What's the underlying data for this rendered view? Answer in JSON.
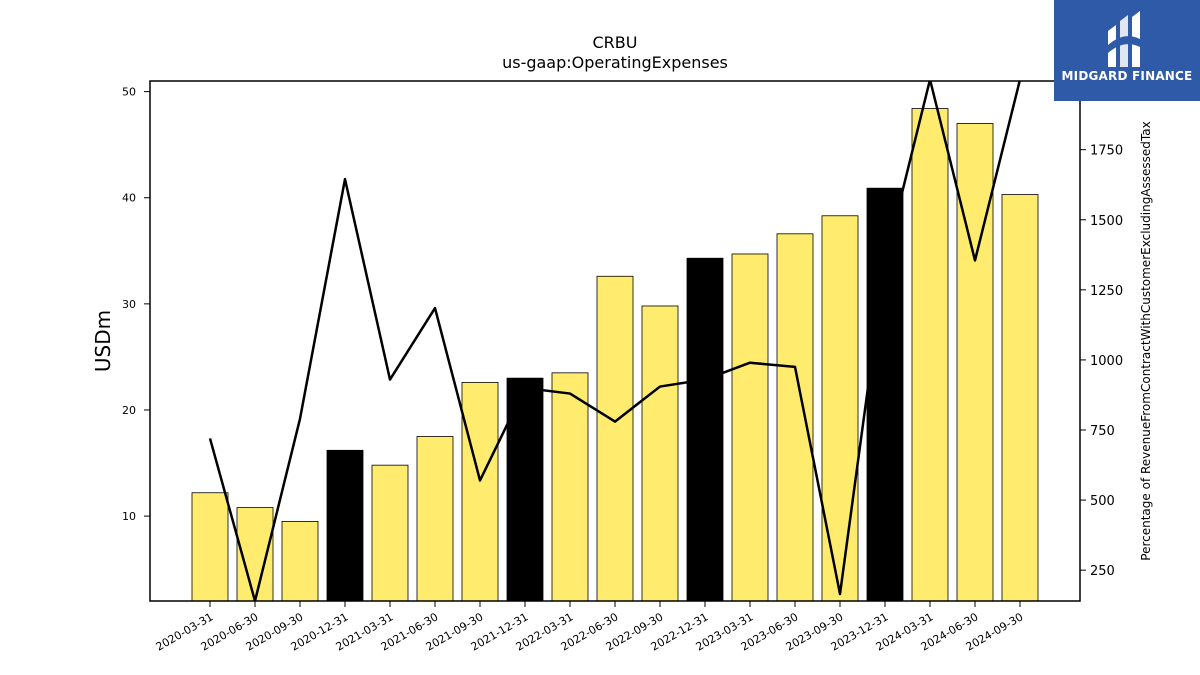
{
  "chart_data": {
    "type": "bar",
    "title": "CRBU",
    "subtitle": "us-gaap:OperatingExpenses",
    "ylabel": "USDm",
    "y2label": "Percentage of RevenueFromContractWithCustomerExcludingAssessedTax",
    "ylim": [
      2,
      51
    ],
    "y2lim": [
      140,
      1995
    ],
    "yticks": [
      10,
      20,
      30,
      40,
      50
    ],
    "y2ticks": [
      250,
      500,
      750,
      1000,
      1250,
      1500,
      1750
    ],
    "categories": [
      "2020-03-31",
      "2020-06-30",
      "2020-09-30",
      "2020-12-31",
      "2021-03-31",
      "2021-06-30",
      "2021-09-30",
      "2021-12-31",
      "2022-03-31",
      "2022-06-30",
      "2022-09-30",
      "2022-12-31",
      "2023-03-31",
      "2023-06-30",
      "2023-09-30",
      "2023-12-31",
      "2024-03-31",
      "2024-06-30",
      "2024-09-30"
    ],
    "series": [
      {
        "type": "bar",
        "axis": "left",
        "values": [
          12.2,
          10.8,
          9.5,
          16.2,
          14.8,
          17.5,
          22.6,
          23.0,
          23.5,
          32.6,
          29.8,
          34.3,
          34.7,
          36.6,
          38.3,
          40.9,
          48.4,
          47.0,
          40.3
        ],
        "colors": [
          "#ffec6e",
          "#ffec6e",
          "#ffec6e",
          "#000000",
          "#ffec6e",
          "#ffec6e",
          "#ffec6e",
          "#000000",
          "#ffec6e",
          "#ffec6e",
          "#ffec6e",
          "#000000",
          "#ffec6e",
          "#ffec6e",
          "#ffec6e",
          "#000000",
          "#ffec6e",
          "#ffec6e",
          "#ffec6e"
        ]
      },
      {
        "type": "line",
        "axis": "right",
        "color": "#000000",
        "values": [
          720,
          140,
          790,
          1645,
          930,
          1185,
          570,
          900,
          880,
          780,
          905,
          930,
          990,
          975,
          165,
          1350,
          2000,
          1355,
          2000
        ]
      }
    ],
    "grid": false
  },
  "logo": {
    "text": "MIDGARD FINANCE",
    "bg_color": "#2f5aa8"
  }
}
